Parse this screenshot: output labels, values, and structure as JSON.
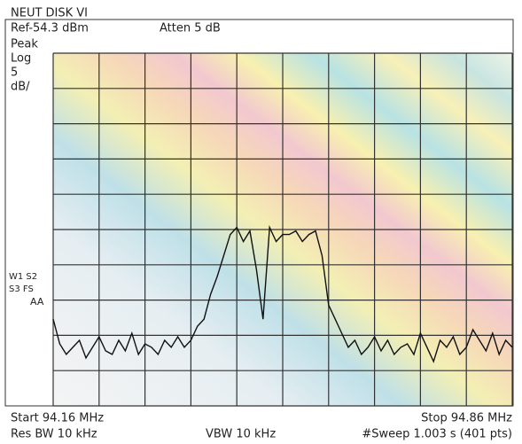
{
  "chart_data": {
    "type": "line",
    "title": "NEUT DISK VI",
    "ref_label": "Ref-54.3 dBm",
    "atten_label": "Atten 5 dB",
    "scale_labels": [
      "Peak",
      "Log",
      "5",
      "dB/"
    ],
    "marker_labels": [
      "W1 S2",
      "S3  FS",
      "AA"
    ],
    "start_label": "Start 94.16 MHz",
    "stop_label": "Stop 94.86 MHz",
    "rbw_label": "Res BW 10 kHz",
    "vbw_label": "VBW 10 kHz",
    "sweep_label": "#Sweep 1.003 s (401 pts)",
    "xlim": [
      94.16,
      94.86
    ],
    "ylim": [
      -104.3,
      -54.3
    ],
    "x": [
      94.16,
      94.17,
      94.18,
      94.19,
      94.2,
      94.21,
      94.22,
      94.23,
      94.24,
      94.25,
      94.26,
      94.27,
      94.28,
      94.29,
      94.3,
      94.31,
      94.32,
      94.33,
      94.34,
      94.35,
      94.36,
      94.37,
      94.38,
      94.39,
      94.4,
      94.41,
      94.42,
      94.43,
      94.44,
      94.45,
      94.46,
      94.47,
      94.48,
      94.49,
      94.5,
      94.51,
      94.52,
      94.53,
      94.54,
      94.55,
      94.56,
      94.57,
      94.58,
      94.59,
      94.6,
      94.61,
      94.62,
      94.63,
      94.64,
      94.65,
      94.66,
      94.67,
      94.68,
      94.69,
      94.7,
      94.71,
      94.72,
      94.73,
      94.74,
      94.75,
      94.76,
      94.77,
      94.78,
      94.79,
      94.8,
      94.81,
      94.82,
      94.83,
      94.84,
      94.85,
      94.86
    ],
    "series": [
      {
        "color": "#111111",
        "values": [
          -92,
          -95.5,
          -97,
          -96,
          -95,
          -97.5,
          -96,
          -94.5,
          -96.5,
          -97,
          -95,
          -96.5,
          -94,
          -97,
          -95.5,
          -96,
          -97,
          -95,
          -96,
          -94.5,
          -96,
          -95,
          -93,
          -92,
          -88.5,
          -86,
          -83,
          -80,
          -79,
          -81,
          -79.5,
          -85,
          -92,
          -79,
          -81,
          -80,
          -80,
          -79.5,
          -81,
          -80,
          -79.5,
          -83,
          -90,
          -92,
          -94,
          -96,
          -95,
          -97,
          -96,
          -94.5,
          -96.5,
          -95,
          -97,
          -96,
          -95.5,
          -97,
          -94,
          -96,
          -98,
          -95,
          -96,
          -94.5,
          -97,
          -96,
          -93.5,
          -95,
          -96.5,
          -94,
          -97,
          -95,
          -96
        ]
      }
    ]
  }
}
